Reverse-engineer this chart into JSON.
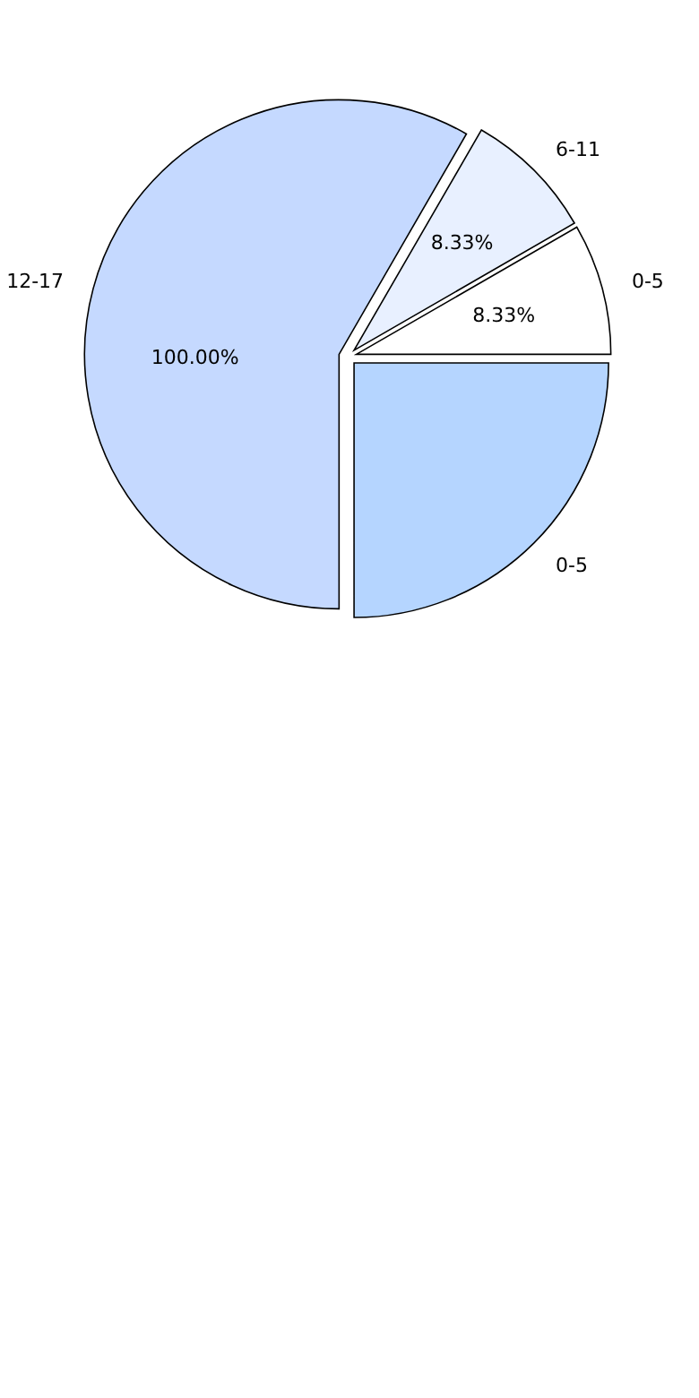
{
  "chart_data": {
    "type": "pie",
    "categories": [
      "0-5",
      "6-11",
      "12-17",
      "0-5"
    ],
    "values": [
      8.33,
      8.33,
      58.34,
      25
    ],
    "value_labels": [
      "8.33%",
      "8.33%",
      null,
      null
    ],
    "annotations": [
      "100.00%"
    ],
    "colors": [
      "#ffffff",
      "#e8f0ff",
      "#c5d9ff",
      "#b5d5ff"
    ]
  }
}
